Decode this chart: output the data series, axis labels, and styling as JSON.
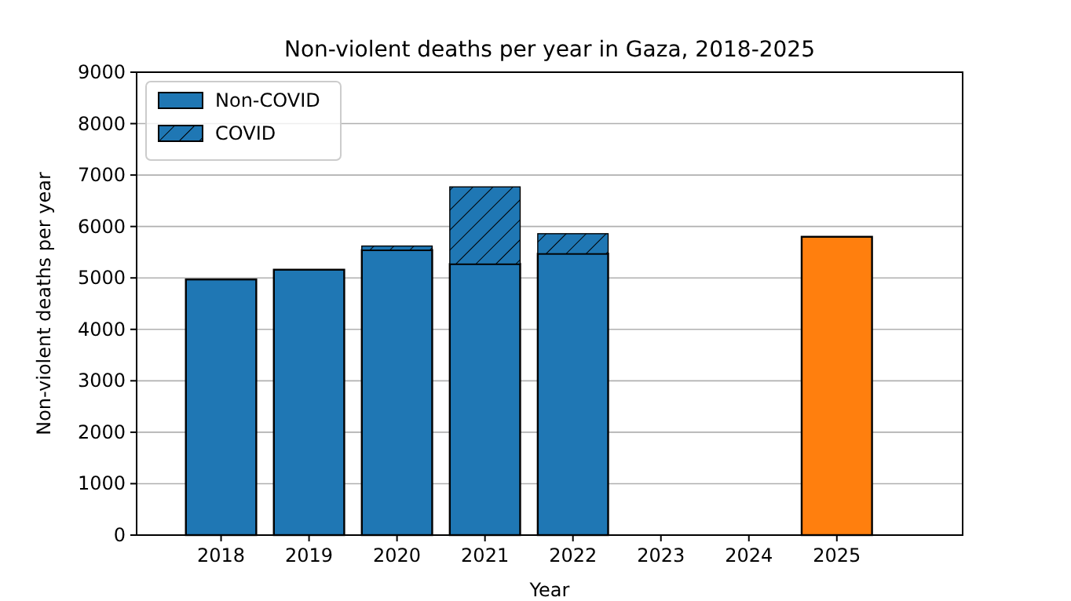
{
  "chart_data": {
    "type": "bar",
    "title": "Non-violent deaths per year in Gaza, 2018-2025",
    "xlabel": "Year",
    "ylabel": "Non-violent deaths per year",
    "x": [
      2018,
      2019,
      2020,
      2021,
      2022,
      2023,
      2024,
      2025
    ],
    "xlim": [
      2017.04,
      2026.43
    ],
    "xticks": [
      2018,
      2019,
      2020,
      2021,
      2022,
      2023,
      2024,
      2025
    ],
    "ylim": [
      0,
      9000
    ],
    "yticks": [
      0,
      1000,
      2000,
      3000,
      4000,
      5000,
      6000,
      7000,
      8000,
      9000
    ],
    "stacked": true,
    "grid": "y",
    "legend": "top left",
    "series": [
      {
        "name": "Non-COVID",
        "color": "#1f77b4",
        "colors": [
          "#1f77b4",
          "#1f77b4",
          "#1f77b4",
          "#1f77b4",
          "#1f77b4",
          null,
          null,
          "#ff7f0e"
        ],
        "values": [
          4970,
          5160,
          5540,
          5270,
          5470,
          null,
          null,
          5800
        ]
      },
      {
        "name": "COVID",
        "color": "#1f77b4",
        "values": [
          null,
          null,
          80,
          1500,
          390,
          null,
          null,
          null
        ]
      }
    ]
  }
}
